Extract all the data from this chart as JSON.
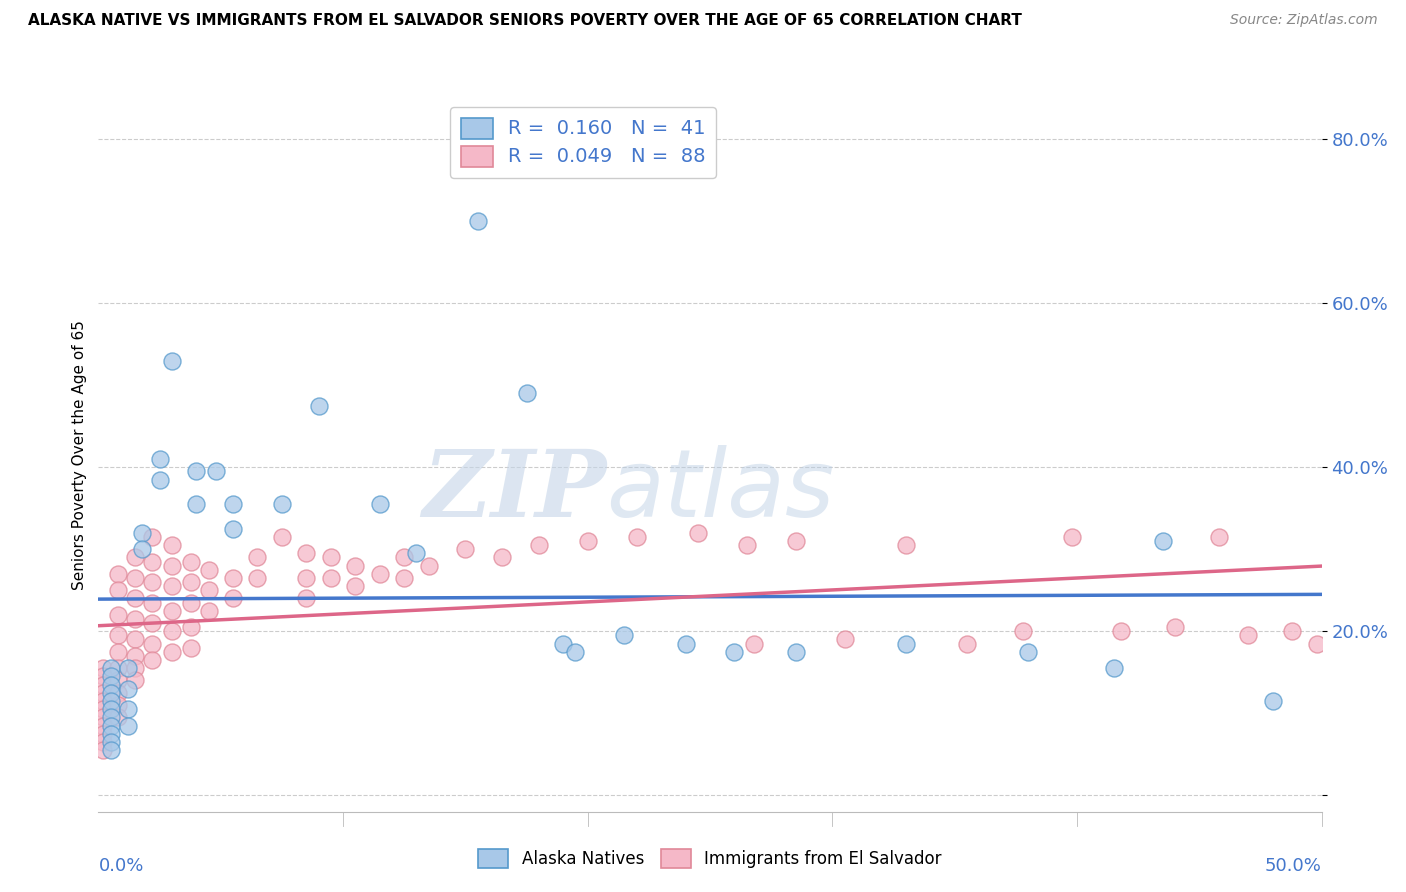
{
  "title": "ALASKA NATIVE VS IMMIGRANTS FROM EL SALVADOR SENIORS POVERTY OVER THE AGE OF 65 CORRELATION CHART",
  "source": "Source: ZipAtlas.com",
  "ylabel": "Seniors Poverty Over the Age of 65",
  "xlim": [
    0.0,
    0.5
  ],
  "ylim": [
    -0.02,
    0.85
  ],
  "yticks": [
    0.0,
    0.2,
    0.4,
    0.6,
    0.8
  ],
  "ytick_labels": [
    "",
    "20.0%",
    "40.0%",
    "60.0%",
    "80.0%"
  ],
  "alaska_color": "#a8c8e8",
  "salvador_color": "#f5b8c8",
  "alaska_edge_color": "#5599cc",
  "salvador_edge_color": "#e08898",
  "alaska_line_color": "#4477cc",
  "salvador_line_color": "#dd6688",
  "watermark_zip": "ZIP",
  "watermark_atlas": "atlas",
  "alaska_points": [
    [
      0.005,
      0.155
    ],
    [
      0.005,
      0.145
    ],
    [
      0.005,
      0.135
    ],
    [
      0.005,
      0.125
    ],
    [
      0.005,
      0.115
    ],
    [
      0.005,
      0.105
    ],
    [
      0.005,
      0.095
    ],
    [
      0.005,
      0.085
    ],
    [
      0.005,
      0.075
    ],
    [
      0.005,
      0.065
    ],
    [
      0.005,
      0.055
    ],
    [
      0.012,
      0.155
    ],
    [
      0.012,
      0.13
    ],
    [
      0.012,
      0.105
    ],
    [
      0.012,
      0.085
    ],
    [
      0.018,
      0.32
    ],
    [
      0.018,
      0.3
    ],
    [
      0.025,
      0.41
    ],
    [
      0.025,
      0.385
    ],
    [
      0.03,
      0.53
    ],
    [
      0.04,
      0.395
    ],
    [
      0.04,
      0.355
    ],
    [
      0.048,
      0.395
    ],
    [
      0.055,
      0.355
    ],
    [
      0.055,
      0.325
    ],
    [
      0.075,
      0.355
    ],
    [
      0.09,
      0.475
    ],
    [
      0.115,
      0.355
    ],
    [
      0.13,
      0.295
    ],
    [
      0.155,
      0.7
    ],
    [
      0.175,
      0.49
    ],
    [
      0.19,
      0.185
    ],
    [
      0.195,
      0.175
    ],
    [
      0.215,
      0.195
    ],
    [
      0.24,
      0.185
    ],
    [
      0.26,
      0.175
    ],
    [
      0.285,
      0.175
    ],
    [
      0.33,
      0.185
    ],
    [
      0.38,
      0.175
    ],
    [
      0.415,
      0.155
    ],
    [
      0.435,
      0.31
    ],
    [
      0.48,
      0.115
    ]
  ],
  "salvador_points": [
    [
      0.002,
      0.155
    ],
    [
      0.002,
      0.145
    ],
    [
      0.002,
      0.135
    ],
    [
      0.002,
      0.125
    ],
    [
      0.002,
      0.115
    ],
    [
      0.002,
      0.105
    ],
    [
      0.002,
      0.095
    ],
    [
      0.002,
      0.085
    ],
    [
      0.002,
      0.075
    ],
    [
      0.002,
      0.065
    ],
    [
      0.002,
      0.055
    ],
    [
      0.008,
      0.27
    ],
    [
      0.008,
      0.25
    ],
    [
      0.008,
      0.22
    ],
    [
      0.008,
      0.195
    ],
    [
      0.008,
      0.175
    ],
    [
      0.008,
      0.155
    ],
    [
      0.008,
      0.14
    ],
    [
      0.008,
      0.125
    ],
    [
      0.008,
      0.11
    ],
    [
      0.008,
      0.095
    ],
    [
      0.015,
      0.29
    ],
    [
      0.015,
      0.265
    ],
    [
      0.015,
      0.24
    ],
    [
      0.015,
      0.215
    ],
    [
      0.015,
      0.19
    ],
    [
      0.015,
      0.17
    ],
    [
      0.015,
      0.155
    ],
    [
      0.015,
      0.14
    ],
    [
      0.022,
      0.315
    ],
    [
      0.022,
      0.285
    ],
    [
      0.022,
      0.26
    ],
    [
      0.022,
      0.235
    ],
    [
      0.022,
      0.21
    ],
    [
      0.022,
      0.185
    ],
    [
      0.022,
      0.165
    ],
    [
      0.03,
      0.305
    ],
    [
      0.03,
      0.28
    ],
    [
      0.03,
      0.255
    ],
    [
      0.03,
      0.225
    ],
    [
      0.03,
      0.2
    ],
    [
      0.03,
      0.175
    ],
    [
      0.038,
      0.285
    ],
    [
      0.038,
      0.26
    ],
    [
      0.038,
      0.235
    ],
    [
      0.038,
      0.205
    ],
    [
      0.038,
      0.18
    ],
    [
      0.045,
      0.275
    ],
    [
      0.045,
      0.25
    ],
    [
      0.045,
      0.225
    ],
    [
      0.055,
      0.265
    ],
    [
      0.055,
      0.24
    ],
    [
      0.065,
      0.29
    ],
    [
      0.065,
      0.265
    ],
    [
      0.075,
      0.315
    ],
    [
      0.085,
      0.295
    ],
    [
      0.085,
      0.265
    ],
    [
      0.085,
      0.24
    ],
    [
      0.095,
      0.29
    ],
    [
      0.095,
      0.265
    ],
    [
      0.105,
      0.28
    ],
    [
      0.105,
      0.255
    ],
    [
      0.115,
      0.27
    ],
    [
      0.125,
      0.29
    ],
    [
      0.125,
      0.265
    ],
    [
      0.135,
      0.28
    ],
    [
      0.15,
      0.3
    ],
    [
      0.165,
      0.29
    ],
    [
      0.18,
      0.305
    ],
    [
      0.2,
      0.31
    ],
    [
      0.22,
      0.315
    ],
    [
      0.245,
      0.32
    ],
    [
      0.265,
      0.305
    ],
    [
      0.268,
      0.185
    ],
    [
      0.285,
      0.31
    ],
    [
      0.305,
      0.19
    ],
    [
      0.33,
      0.305
    ],
    [
      0.355,
      0.185
    ],
    [
      0.378,
      0.2
    ],
    [
      0.398,
      0.315
    ],
    [
      0.418,
      0.2
    ],
    [
      0.44,
      0.205
    ],
    [
      0.458,
      0.315
    ],
    [
      0.47,
      0.195
    ],
    [
      0.488,
      0.2
    ],
    [
      0.498,
      0.185
    ]
  ]
}
